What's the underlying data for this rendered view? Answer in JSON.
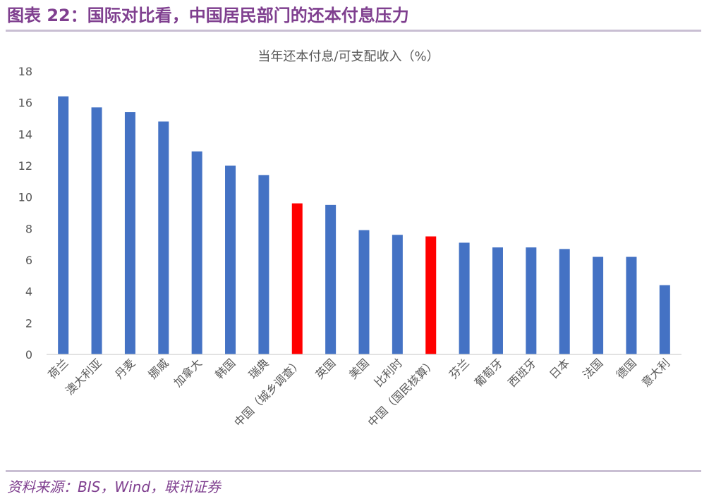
{
  "figure": {
    "title": "图表 22：国际对比看，中国居民部门的还本付息压力",
    "source": "资料来源：BIS，Wind，联讯证券"
  },
  "colors": {
    "title": "#7f3f8f",
    "bar_default": "#4472c4",
    "bar_highlight": "#ff0000",
    "axis": "#d9d9d9",
    "text": "#595959"
  },
  "chart_data": {
    "type": "bar",
    "title": "当年还本付息/可支配收入（%）",
    "xlabel": "",
    "ylabel": "",
    "ylim": [
      0,
      18
    ],
    "yticks": [
      0,
      2,
      4,
      6,
      8,
      10,
      12,
      14,
      16,
      18
    ],
    "grid": false,
    "legend": "none",
    "categories": [
      "荷兰",
      "澳大利亚",
      "丹麦",
      "挪威",
      "加拿大",
      "韩国",
      "瑞典",
      "中国（城乡调查）",
      "英国",
      "美国",
      "比利时",
      "中国（国民核算）",
      "芬兰",
      "葡萄牙",
      "西班牙",
      "日本",
      "法国",
      "德国",
      "意大利"
    ],
    "values": [
      16.4,
      15.7,
      15.4,
      14.8,
      12.9,
      12.0,
      11.4,
      9.6,
      9.5,
      7.9,
      7.6,
      7.5,
      7.1,
      6.8,
      6.8,
      6.7,
      6.2,
      6.2,
      4.4
    ],
    "highlighted": [
      "中国（城乡调查）",
      "中国（国民核算）"
    ]
  }
}
